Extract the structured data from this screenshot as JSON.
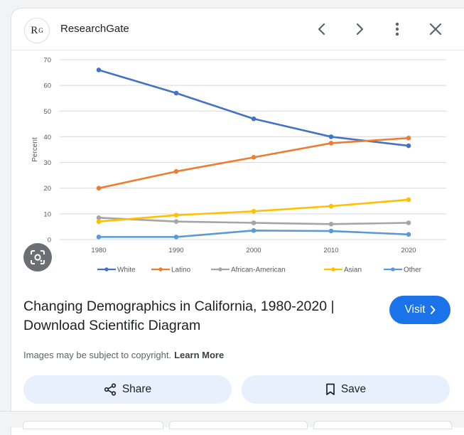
{
  "header": {
    "logo_text": "R",
    "logo_sup": "G",
    "site_name": "ResearchGate",
    "icons": [
      "chevron-left-icon",
      "chevron-right-icon",
      "more-vert-icon",
      "close-icon"
    ]
  },
  "chart_data": {
    "type": "line",
    "ylabel": "Percent",
    "ylim": [
      0,
      70
    ],
    "yticks": [
      "0",
      "10",
      "20",
      "30",
      "40",
      "50",
      "60",
      "70"
    ],
    "x": [
      "1980",
      "1990",
      "2000",
      "2010",
      "2020"
    ],
    "grid": true,
    "legend_placement": "bottom",
    "series": [
      {
        "name": "White",
        "color": "#4472c4",
        "values": [
          66,
          57,
          47,
          40,
          36.5
        ]
      },
      {
        "name": "Latino",
        "color": "#ed7d31",
        "values": [
          20,
          26.5,
          32,
          37.5,
          39.5
        ]
      },
      {
        "name": "African-American",
        "color": "#a5a5a5",
        "values": [
          8.5,
          7,
          6.5,
          6,
          6.5
        ]
      },
      {
        "name": "Asian",
        "color": "#ffc000",
        "values": [
          7,
          9.5,
          11,
          13,
          15.5
        ]
      },
      {
        "name": "Other",
        "color": "#5b9bd5",
        "values": [
          1,
          1,
          3.5,
          3.3,
          2
        ]
      }
    ]
  },
  "result": {
    "title": "Changing Demographics in California, 1980-2020 | Download Scientific Diagram",
    "visit_label": "Visit",
    "copyright_text": "Images may be subject to copyright.",
    "learn_more": "Learn More",
    "share_label": "Share",
    "save_label": "Save"
  },
  "colors": {
    "accent": "#1a73e8",
    "action_bg": "#e8f0fe"
  }
}
